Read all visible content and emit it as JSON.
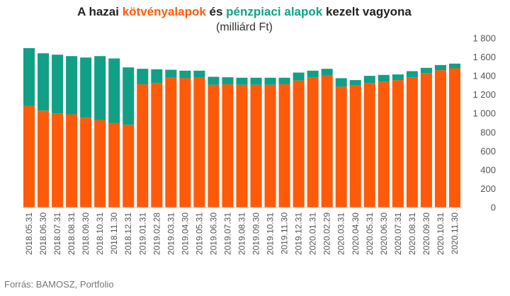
{
  "title": {
    "part1": "A hazai ",
    "part2": "kötvényalapok",
    "part3": " és ",
    "part4": "pénzpiaci alapok",
    "part5": " kezelt vagyona"
  },
  "subtitle": "(milliárd Ft)",
  "source": "Forrás: BAMOSZ, Portfolio",
  "colors": {
    "bond": "#ff5a0a",
    "money_market": "#11a085",
    "title_dark": "#222222"
  },
  "chart_data": {
    "type": "bar",
    "stacked": true,
    "categories": [
      "2018.05.31",
      "2018.06.30",
      "2018.07.31",
      "2018.08.31",
      "2018.09.30",
      "2018.10.31",
      "2018.11.30",
      "2018.12.31",
      "2019.01.31",
      "2019.02.28",
      "2019.03.31",
      "2019.04.30",
      "2019.05.31",
      "2019.06.30",
      "2019.07.31",
      "2019.08.31",
      "2019.09.30",
      "2019.10.31",
      "2019.11.30",
      "2019.12.31",
      "2020.01.31",
      "2020.02.29",
      "2020.03.31",
      "2020.04.30",
      "2020.05.31",
      "2020.06.30",
      "2020.07.31",
      "2020.08.31",
      "2020.09.30",
      "2020.10.31",
      "2020.11.30"
    ],
    "series": [
      {
        "name": "kötvényalapok",
        "color": "#ff5a0a",
        "values": [
          1080,
          1030,
          1000,
          990,
          955,
          930,
          900,
          880,
          1310,
          1325,
          1380,
          1375,
          1380,
          1305,
          1310,
          1305,
          1305,
          1305,
          1310,
          1350,
          1385,
          1405,
          1285,
          1300,
          1325,
          1335,
          1355,
          1385,
          1430,
          1460,
          1480
        ]
      },
      {
        "name": "pénzpiaci alapok",
        "color": "#11a085",
        "values": [
          615,
          610,
          625,
          620,
          640,
          680,
          685,
          610,
          165,
          145,
          85,
          80,
          75,
          85,
          75,
          75,
          75,
          75,
          70,
          85,
          70,
          70,
          90,
          55,
          75,
          75,
          60,
          65,
          55,
          55,
          50
        ]
      }
    ],
    "ylim": [
      0,
      1800
    ],
    "yticks": [
      "0",
      "200",
      "400",
      "600",
      "800",
      "1 000",
      "1 200",
      "1 400",
      "1 600",
      "1 800"
    ],
    "yaxis_position": "right",
    "grid": false,
    "legend": "none"
  }
}
